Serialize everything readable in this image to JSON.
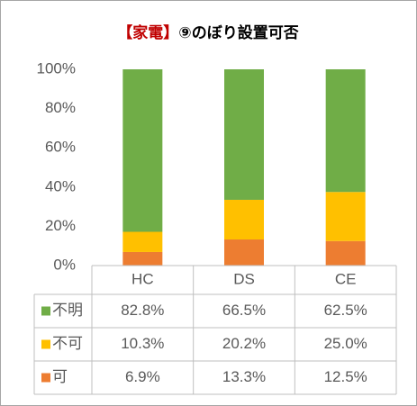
{
  "chart_data": {
    "type": "stacked_bar",
    "title": [
      "【家電】",
      "⑨のぼり設置可否"
    ],
    "title_colors": [
      "#c00000",
      "#000000"
    ],
    "categories": [
      "HC",
      "DS",
      "CE"
    ],
    "series": [
      {
        "name": "可",
        "color": "#ed7d31",
        "values": [
          6.9,
          13.3,
          12.5
        ],
        "value_labels": [
          "6.9%",
          "13.3%",
          "12.5%"
        ]
      },
      {
        "name": "不可",
        "color": "#ffc000",
        "values": [
          10.3,
          20.2,
          25.0
        ],
        "value_labels": [
          "10.3%",
          "20.2%",
          "25.0%"
        ]
      },
      {
        "name": "不明",
        "color": "#70ad47",
        "values": [
          82.8,
          66.5,
          62.5
        ],
        "value_labels": [
          "82.8%",
          "66.5%",
          "62.5%"
        ]
      }
    ],
    "ylim": [
      0,
      100
    ],
    "yticks": [
      {
        "value": 0,
        "label": "0%"
      },
      {
        "value": 20,
        "label": "20%"
      },
      {
        "value": 40,
        "label": "40%"
      },
      {
        "value": 60,
        "label": "60%"
      },
      {
        "value": 80,
        "label": "80%"
      },
      {
        "value": 100,
        "label": "100%"
      }
    ],
    "grid": false
  }
}
